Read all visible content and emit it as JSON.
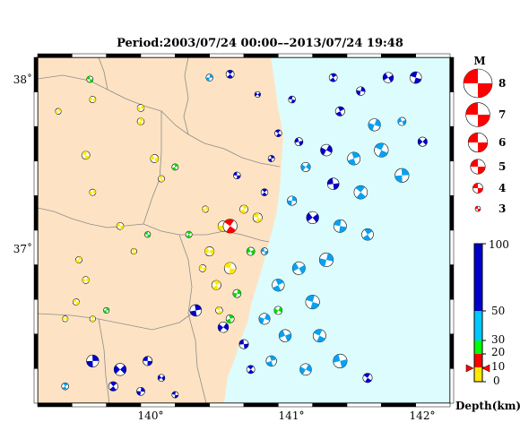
{
  "title": "Period:2003/07/24 00:00––2013/07/24 19:48",
  "map": {
    "lon_range": [
      139.2,
      142.2
    ],
    "lat_range": [
      36.05,
      38.1
    ],
    "lon_ticks": [
      {
        "value": 140,
        "label": "140°"
      },
      {
        "value": 141,
        "label": "141°"
      },
      {
        "value": 142,
        "label": "142°"
      }
    ],
    "lat_ticks": [
      {
        "value": 38,
        "label": "38˚"
      },
      {
        "value": 37,
        "label": "37˚"
      }
    ],
    "colors": {
      "land": "#fde3c3",
      "sea": "#dcfcfd",
      "prefecture_line": "#8c8c8c",
      "frame": "#000000"
    }
  },
  "magnitude_legend": {
    "title": "M",
    "entries": [
      {
        "label": "8",
        "magnitude": 8
      },
      {
        "label": "7",
        "magnitude": 7
      },
      {
        "label": "6",
        "magnitude": 6
      },
      {
        "label": "5",
        "magnitude": 5
      },
      {
        "label": "4",
        "magnitude": 4
      },
      {
        "label": "3",
        "magnitude": 3
      }
    ],
    "color": "#ff0000"
  },
  "depth_scale": {
    "label": "Depth(km)",
    "ticks": [
      {
        "label": "100",
        "value": 100
      },
      {
        "label": "50",
        "value": 50
      },
      {
        "label": "30",
        "value": 30
      },
      {
        "label": "20",
        "value": 20
      },
      {
        "label": "10",
        "value": 10
      },
      {
        "label": "0",
        "value": 0
      }
    ],
    "bands": [
      {
        "from": 0,
        "to": 10,
        "color": "#ffe800"
      },
      {
        "from": 10,
        "to": 20,
        "color": "#ff0000"
      },
      {
        "from": 20,
        "to": 30,
        "color": "#00ff00"
      },
      {
        "from": 30,
        "to": 50,
        "color": "#00c8ff"
      },
      {
        "from": 50,
        "to": 100,
        "color": "#0000c8"
      }
    ],
    "marker_depth": 10
  },
  "focal_mechanisms": {
    "note": "beachball positions as lon/lat, magnitude, depth class",
    "events": [
      {
        "lon": 139.58,
        "lat": 37.97,
        "m": 3.5,
        "d": "shallow_green"
      },
      {
        "lon": 140.6,
        "lat": 38.0,
        "m": 3.8,
        "d": "deep"
      },
      {
        "lon": 140.45,
        "lat": 37.98,
        "m": 3.6,
        "d": "mid"
      },
      {
        "lon": 140.8,
        "lat": 37.88,
        "m": 3.4,
        "d": "deep"
      },
      {
        "lon": 141.05,
        "lat": 37.85,
        "m": 3.6,
        "d": "deep"
      },
      {
        "lon": 141.35,
        "lat": 37.98,
        "m": 3.8,
        "d": "deep"
      },
      {
        "lon": 141.55,
        "lat": 37.9,
        "m": 3.9,
        "d": "deep"
      },
      {
        "lon": 141.75,
        "lat": 37.98,
        "m": 4.2,
        "d": "deep"
      },
      {
        "lon": 141.95,
        "lat": 37.98,
        "m": 4.4,
        "d": "deep"
      },
      {
        "lon": 141.4,
        "lat": 37.78,
        "m": 4.0,
        "d": "deep"
      },
      {
        "lon": 141.65,
        "lat": 37.7,
        "m": 4.5,
        "d": "mid"
      },
      {
        "lon": 141.85,
        "lat": 37.72,
        "m": 3.8,
        "d": "mid"
      },
      {
        "lon": 141.7,
        "lat": 37.55,
        "m": 4.8,
        "d": "mid"
      },
      {
        "lon": 141.5,
        "lat": 37.5,
        "m": 4.6,
        "d": "mid"
      },
      {
        "lon": 141.3,
        "lat": 37.55,
        "m": 4.4,
        "d": "deep"
      },
      {
        "lon": 141.1,
        "lat": 37.6,
        "m": 3.8,
        "d": "deep"
      },
      {
        "lon": 140.95,
        "lat": 37.65,
        "m": 3.6,
        "d": "deep"
      },
      {
        "lon": 140.9,
        "lat": 37.5,
        "m": 3.5,
        "d": "deep"
      },
      {
        "lon": 141.15,
        "lat": 37.45,
        "m": 4.0,
        "d": "mid"
      },
      {
        "lon": 141.35,
        "lat": 37.35,
        "m": 4.4,
        "d": "deep"
      },
      {
        "lon": 141.55,
        "lat": 37.3,
        "m": 4.7,
        "d": "mid"
      },
      {
        "lon": 141.85,
        "lat": 37.4,
        "m": 4.8,
        "d": "mid"
      },
      {
        "lon": 142.0,
        "lat": 37.6,
        "m": 4.0,
        "d": "deep"
      },
      {
        "lon": 140.65,
        "lat": 37.4,
        "m": 3.6,
        "d": "deep"
      },
      {
        "lon": 140.85,
        "lat": 37.3,
        "m": 3.6,
        "d": "deep"
      },
      {
        "lon": 141.05,
        "lat": 37.25,
        "m": 4.0,
        "d": "mid"
      },
      {
        "lon": 141.2,
        "lat": 37.15,
        "m": 4.5,
        "d": "deep"
      },
      {
        "lon": 141.4,
        "lat": 37.1,
        "m": 4.6,
        "d": "mid"
      },
      {
        "lon": 141.6,
        "lat": 37.05,
        "m": 4.4,
        "d": "mid"
      },
      {
        "lon": 141.3,
        "lat": 36.9,
        "m": 4.8,
        "d": "mid"
      },
      {
        "lon": 141.1,
        "lat": 36.85,
        "m": 4.6,
        "d": "mid"
      },
      {
        "lon": 141.2,
        "lat": 36.65,
        "m": 4.8,
        "d": "mid"
      },
      {
        "lon": 140.95,
        "lat": 36.75,
        "m": 4.5,
        "d": "mid"
      },
      {
        "lon": 140.85,
        "lat": 36.55,
        "m": 4.3,
        "d": "mid"
      },
      {
        "lon": 141.0,
        "lat": 36.45,
        "m": 4.5,
        "d": "mid"
      },
      {
        "lon": 141.25,
        "lat": 36.45,
        "m": 4.6,
        "d": "mid"
      },
      {
        "lon": 140.9,
        "lat": 36.3,
        "m": 4.2,
        "d": "mid"
      },
      {
        "lon": 141.15,
        "lat": 36.25,
        "m": 4.4,
        "d": "mid"
      },
      {
        "lon": 141.4,
        "lat": 36.3,
        "m": 4.8,
        "d": "mid"
      },
      {
        "lon": 141.6,
        "lat": 36.2,
        "m": 4.0,
        "d": "deep"
      },
      {
        "lon": 140.35,
        "lat": 36.6,
        "m": 4.4,
        "d": "deep"
      },
      {
        "lon": 140.55,
        "lat": 36.5,
        "m": 4.2,
        "d": "deep"
      },
      {
        "lon": 140.7,
        "lat": 36.4,
        "m": 4.0,
        "d": "deep"
      },
      {
        "lon": 140.75,
        "lat": 36.25,
        "m": 3.8,
        "d": "deep"
      },
      {
        "lon": 139.6,
        "lat": 36.3,
        "m": 4.5,
        "d": "deep"
      },
      {
        "lon": 139.8,
        "lat": 36.25,
        "m": 4.5,
        "d": "deep"
      },
      {
        "lon": 140.0,
        "lat": 36.3,
        "m": 4.0,
        "d": "deep"
      },
      {
        "lon": 139.75,
        "lat": 36.15,
        "m": 4.0,
        "d": "deep"
      },
      {
        "lon": 139.95,
        "lat": 36.12,
        "m": 3.8,
        "d": "deep"
      },
      {
        "lon": 140.1,
        "lat": 36.2,
        "m": 3.6,
        "d": "deep"
      },
      {
        "lon": 140.2,
        "lat": 36.1,
        "m": 3.5,
        "d": "deep"
      },
      {
        "lon": 139.4,
        "lat": 36.15,
        "m": 3.6,
        "d": "mid"
      },
      {
        "lon": 139.35,
        "lat": 37.78,
        "m": 3.4,
        "d": "shallow"
      },
      {
        "lon": 139.6,
        "lat": 37.85,
        "m": 3.5,
        "d": "shallow"
      },
      {
        "lon": 139.55,
        "lat": 37.52,
        "m": 3.8,
        "d": "shallow"
      },
      {
        "lon": 139.95,
        "lat": 37.72,
        "m": 3.6,
        "d": "shallow"
      },
      {
        "lon": 139.95,
        "lat": 37.8,
        "m": 3.6,
        "d": "shallow"
      },
      {
        "lon": 140.05,
        "lat": 37.5,
        "m": 3.8,
        "d": "shallow"
      },
      {
        "lon": 140.1,
        "lat": 37.38,
        "m": 3.5,
        "d": "shallow"
      },
      {
        "lon": 140.2,
        "lat": 37.45,
        "m": 3.5,
        "d": "shallow_green"
      },
      {
        "lon": 139.6,
        "lat": 37.3,
        "m": 3.5,
        "d": "shallow"
      },
      {
        "lon": 139.8,
        "lat": 37.1,
        "m": 3.6,
        "d": "shallow"
      },
      {
        "lon": 139.9,
        "lat": 36.95,
        "m": 3.4,
        "d": "shallow"
      },
      {
        "lon": 139.5,
        "lat": 36.9,
        "m": 3.5,
        "d": "shallow"
      },
      {
        "lon": 139.55,
        "lat": 36.78,
        "m": 3.6,
        "d": "shallow"
      },
      {
        "lon": 139.48,
        "lat": 36.65,
        "m": 3.5,
        "d": "shallow"
      },
      {
        "lon": 139.6,
        "lat": 36.55,
        "m": 3.4,
        "d": "shallow"
      },
      {
        "lon": 139.7,
        "lat": 36.6,
        "m": 3.4,
        "d": "shallow_green"
      },
      {
        "lon": 139.4,
        "lat": 36.55,
        "m": 3.4,
        "d": "shallow"
      },
      {
        "lon": 140.0,
        "lat": 37.05,
        "m": 3.4,
        "d": "shallow_green"
      },
      {
        "lon": 140.3,
        "lat": 37.05,
        "m": 3.5,
        "d": "shallow_green"
      },
      {
        "lon": 140.55,
        "lat": 37.1,
        "m": 4.2,
        "d": "shallow"
      },
      {
        "lon": 140.45,
        "lat": 36.95,
        "m": 4.0,
        "d": "shallow"
      },
      {
        "lon": 140.6,
        "lat": 36.85,
        "m": 4.4,
        "d": "shallow"
      },
      {
        "lon": 140.5,
        "lat": 36.75,
        "m": 4.0,
        "d": "shallow"
      },
      {
        "lon": 140.65,
        "lat": 36.7,
        "m": 3.8,
        "d": "shallow_green"
      },
      {
        "lon": 140.75,
        "lat": 36.95,
        "m": 3.8,
        "d": "shallow_green"
      },
      {
        "lon": 140.8,
        "lat": 37.15,
        "m": 4.0,
        "d": "shallow"
      },
      {
        "lon": 140.7,
        "lat": 37.2,
        "m": 3.8,
        "d": "shallow"
      },
      {
        "lon": 140.42,
        "lat": 37.2,
        "m": 3.5,
        "d": "shallow"
      },
      {
        "lon": 140.4,
        "lat": 36.85,
        "m": 3.6,
        "d": "shallow"
      },
      {
        "lon": 140.52,
        "lat": 36.6,
        "m": 3.6,
        "d": "shallow"
      },
      {
        "lon": 140.6,
        "lat": 36.55,
        "m": 3.8,
        "d": "shallow_green"
      },
      {
        "lon": 140.95,
        "lat": 36.6,
        "m": 3.8,
        "d": "shallow_green"
      },
      {
        "lon": 140.85,
        "lat": 36.95,
        "m": 3.6,
        "d": "mid"
      },
      {
        "lon": 140.6,
        "lat": 37.1,
        "m": 4.8,
        "d": "red"
      }
    ]
  }
}
